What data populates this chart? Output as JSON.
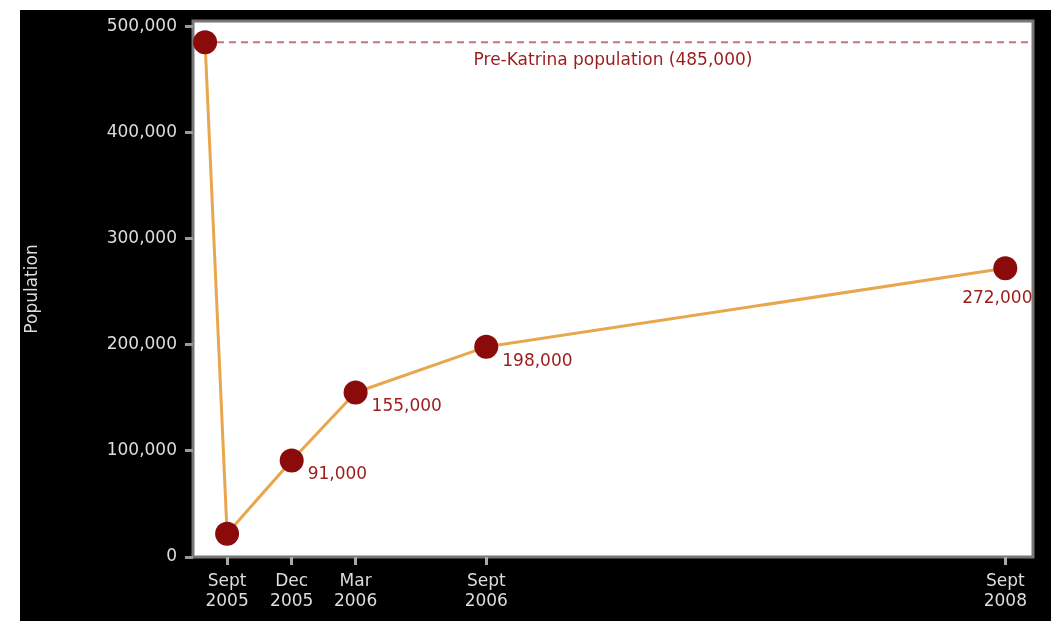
{
  "chart_data": {
    "type": "line",
    "ylabel": "Population",
    "x": [
      "2005-08",
      "2005-09",
      "2005-12",
      "2006-03",
      "2006-09",
      "2008-09"
    ],
    "series": [
      {
        "color": "#e8a64e",
        "colors": [
          "#8b0a0a",
          "#8b0a0a",
          "#8b0a0a",
          "#8b0a0a",
          "#8b0a0a",
          "#8b0a0a"
        ],
        "values": [
          485000,
          22000,
          91000,
          155000,
          198000,
          272000
        ],
        "value_labels": [
          null,
          null,
          "91,000",
          "155,000",
          "198,000",
          "272,000"
        ]
      }
    ],
    "xlim": [
      "2005-07-15",
      "2008-10-10"
    ],
    "xticks": [
      {
        "value": "2005-09",
        "label": "Sept 2005"
      },
      {
        "value": "2005-12",
        "label": "Dec 2005"
      },
      {
        "value": "2006-03",
        "label": "Mar 2006"
      },
      {
        "value": "2006-09",
        "label": "Sept 2006"
      },
      {
        "value": "2008-09",
        "label": "Sept 2008"
      }
    ],
    "ylim": [
      0,
      505000
    ],
    "yticks": [
      {
        "value": 0,
        "label": "0"
      },
      {
        "value": 100000,
        "label": "100,000"
      },
      {
        "value": 200000,
        "label": "200,000"
      },
      {
        "value": 300000,
        "label": "300,000"
      },
      {
        "value": 400000,
        "label": "400,000"
      },
      {
        "value": 500000,
        "label": "500,000"
      }
    ],
    "ref_lines": [
      {
        "axis": "y",
        "value": 485000,
        "label": "Pre-Katrina population (485,000)",
        "color": "#c07878",
        "line_style": "dashed"
      }
    ],
    "marker": "circle",
    "line_style": "solid",
    "grid": false,
    "legend": false
  }
}
